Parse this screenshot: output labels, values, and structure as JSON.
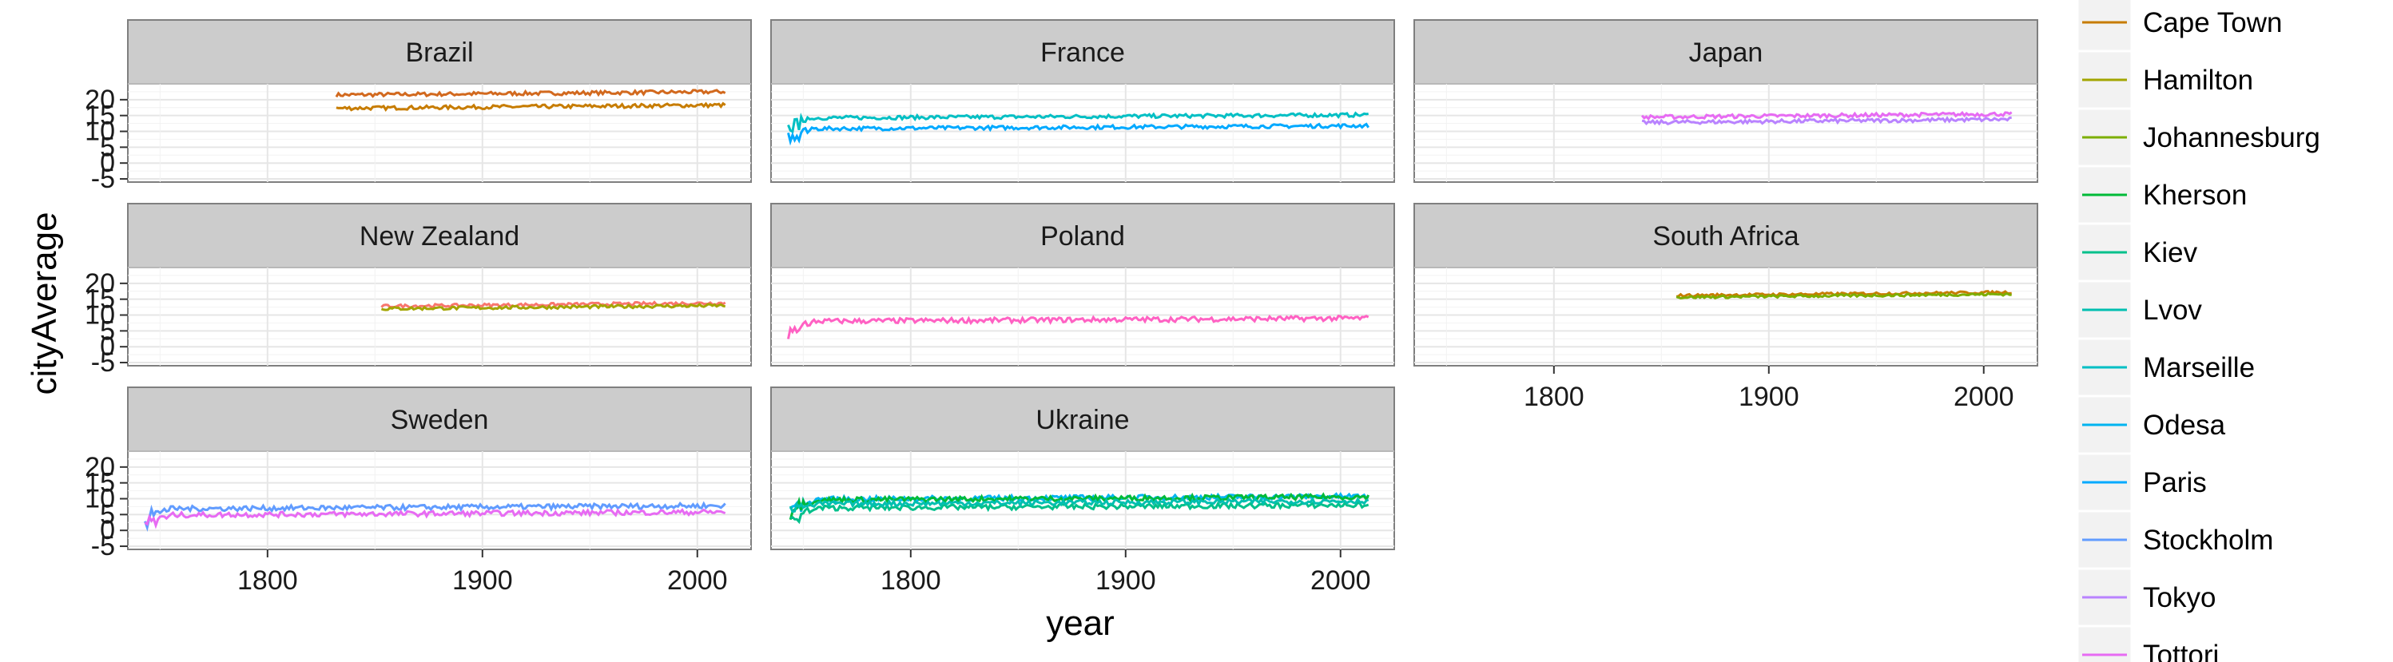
{
  "chart_data": {
    "type": "line",
    "xlabel": "year",
    "ylabel": "cityAverage",
    "xlim": [
      1735,
      2025
    ],
    "ylim": [
      -6,
      25
    ],
    "x_ticks": [
      1800,
      1900,
      2000
    ],
    "y_ticks": [
      -5,
      0,
      5,
      10,
      15,
      20
    ],
    "y_tick_labels": [
      "-5",
      "0",
      "5",
      "10",
      "15",
      "20"
    ],
    "grid": true,
    "legend_placement": "right",
    "legend": [
      {
        "name": "Cape Town",
        "color": "#C77C00"
      },
      {
        "name": "Hamilton",
        "color": "#A3A500"
      },
      {
        "name": "Johannesburg",
        "color": "#7CAE00"
      },
      {
        "name": "Kherson",
        "color": "#00BA38"
      },
      {
        "name": "Kiev",
        "color": "#00C08B"
      },
      {
        "name": "Lvov",
        "color": "#00BFB0"
      },
      {
        "name": "Marseille",
        "color": "#00BFC4"
      },
      {
        "name": "Odesa",
        "color": "#00B4F0"
      },
      {
        "name": "Paris",
        "color": "#00A9FF"
      },
      {
        "name": "Stockholm",
        "color": "#619CFF"
      },
      {
        "name": "Tokyo",
        "color": "#B983FF"
      },
      {
        "name": "Tottori",
        "color": "#E76BF3"
      }
    ],
    "panels": [
      {
        "label": "Brazil",
        "series": [
          {
            "name": "",
            "color": "#D2691E",
            "start": 1832,
            "end": 2013,
            "level": 21.5,
            "noise": 0.6
          },
          {
            "name": "",
            "color": "#C77C00",
            "start": 1832,
            "end": 2013,
            "level": 17.3,
            "noise": 0.6
          }
        ]
      },
      {
        "label": "France",
        "series": [
          {
            "name": "Marseille",
            "color": "#00BFC4",
            "start": 1743,
            "end": 2013,
            "level": 14.2,
            "noise": 0.6
          },
          {
            "name": "Paris",
            "color": "#00A9FF",
            "start": 1743,
            "end": 2013,
            "level": 10.8,
            "noise": 0.6
          }
        ]
      },
      {
        "label": "Japan",
        "series": [
          {
            "name": "Tottori",
            "color": "#E76BF3",
            "start": 1841,
            "end": 2013,
            "level": 14.5,
            "noise": 0.6
          },
          {
            "name": "Tokyo",
            "color": "#B983FF",
            "start": 1841,
            "end": 2013,
            "level": 12.8,
            "noise": 0.6
          }
        ]
      },
      {
        "label": "New Zealand",
        "series": [
          {
            "name": "",
            "color": "#F8766D",
            "start": 1853,
            "end": 2013,
            "level": 12.8,
            "noise": 0.5
          },
          {
            "name": "Hamilton",
            "color": "#A3A500",
            "start": 1853,
            "end": 2013,
            "level": 12.0,
            "noise": 0.5
          }
        ]
      },
      {
        "label": "Poland",
        "series": [
          {
            "name": "",
            "color": "#FF61C3",
            "start": 1743,
            "end": 2013,
            "level": 8.0,
            "noise": 0.8
          }
        ]
      },
      {
        "label": "South Africa",
        "series": [
          {
            "name": "Cape Town",
            "color": "#C77C00",
            "start": 1857,
            "end": 2013,
            "level": 16.2,
            "noise": 0.4
          },
          {
            "name": "Johannesburg",
            "color": "#7CAE00",
            "start": 1857,
            "end": 2013,
            "level": 15.6,
            "noise": 0.4
          }
        ]
      },
      {
        "label": "Sweden",
        "series": [
          {
            "name": "Stockholm",
            "color": "#619CFF",
            "start": 1743,
            "end": 2013,
            "level": 6.8,
            "noise": 0.8
          },
          {
            "name": "Tottori",
            "color": "#E76BF3",
            "start": 1743,
            "end": 2013,
            "level": 4.8,
            "noise": 0.8
          }
        ]
      },
      {
        "label": "Ukraine",
        "series": [
          {
            "name": "Odesa",
            "color": "#00B4F0",
            "start": 1744,
            "end": 2013,
            "level": 9.8,
            "noise": 0.8
          },
          {
            "name": "Kherson",
            "color": "#00BA38",
            "start": 1744,
            "end": 2013,
            "level": 9.6,
            "noise": 0.8
          },
          {
            "name": "Kiev",
            "color": "#00C08B",
            "start": 1744,
            "end": 2013,
            "level": 7.0,
            "noise": 0.8
          },
          {
            "name": "Lvov",
            "color": "#00BFB0",
            "start": 1744,
            "end": 2013,
            "level": 8.3,
            "noise": 0.8
          }
        ]
      }
    ]
  }
}
